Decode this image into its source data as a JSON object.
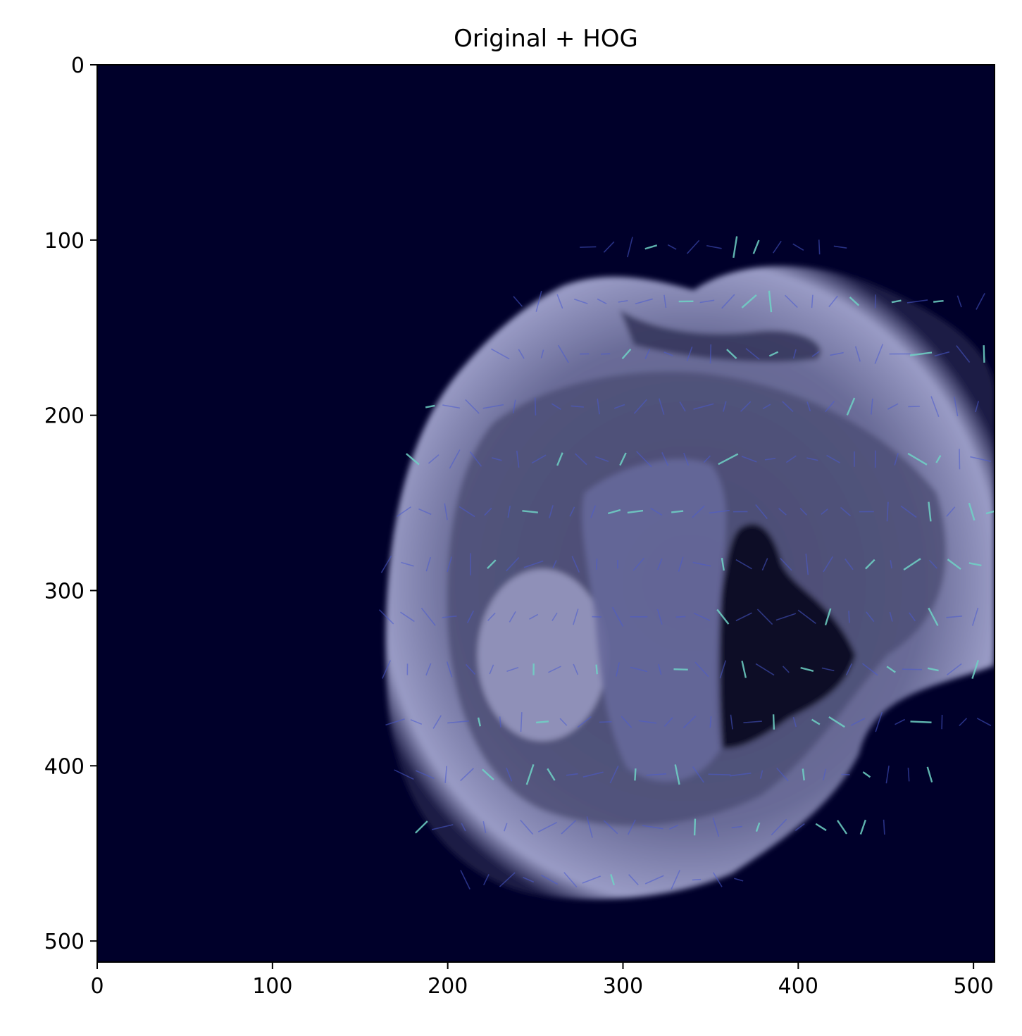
{
  "chart_data": {
    "type": "heatmap",
    "title": "Original + HOG",
    "xlabel": "",
    "ylabel": "",
    "xlim": [
      0,
      512
    ],
    "ylim": [
      512,
      0
    ],
    "xticks": [
      0,
      100,
      200,
      300,
      400,
      500
    ],
    "yticks": [
      0,
      100,
      200,
      300,
      400,
      500
    ],
    "grid": false,
    "content": "MRI brain slice with HOG gradient overlay",
    "colors": {
      "background": "#00002a",
      "tissue": "#8a8cb8",
      "hog": "#6fd3c6"
    }
  }
}
